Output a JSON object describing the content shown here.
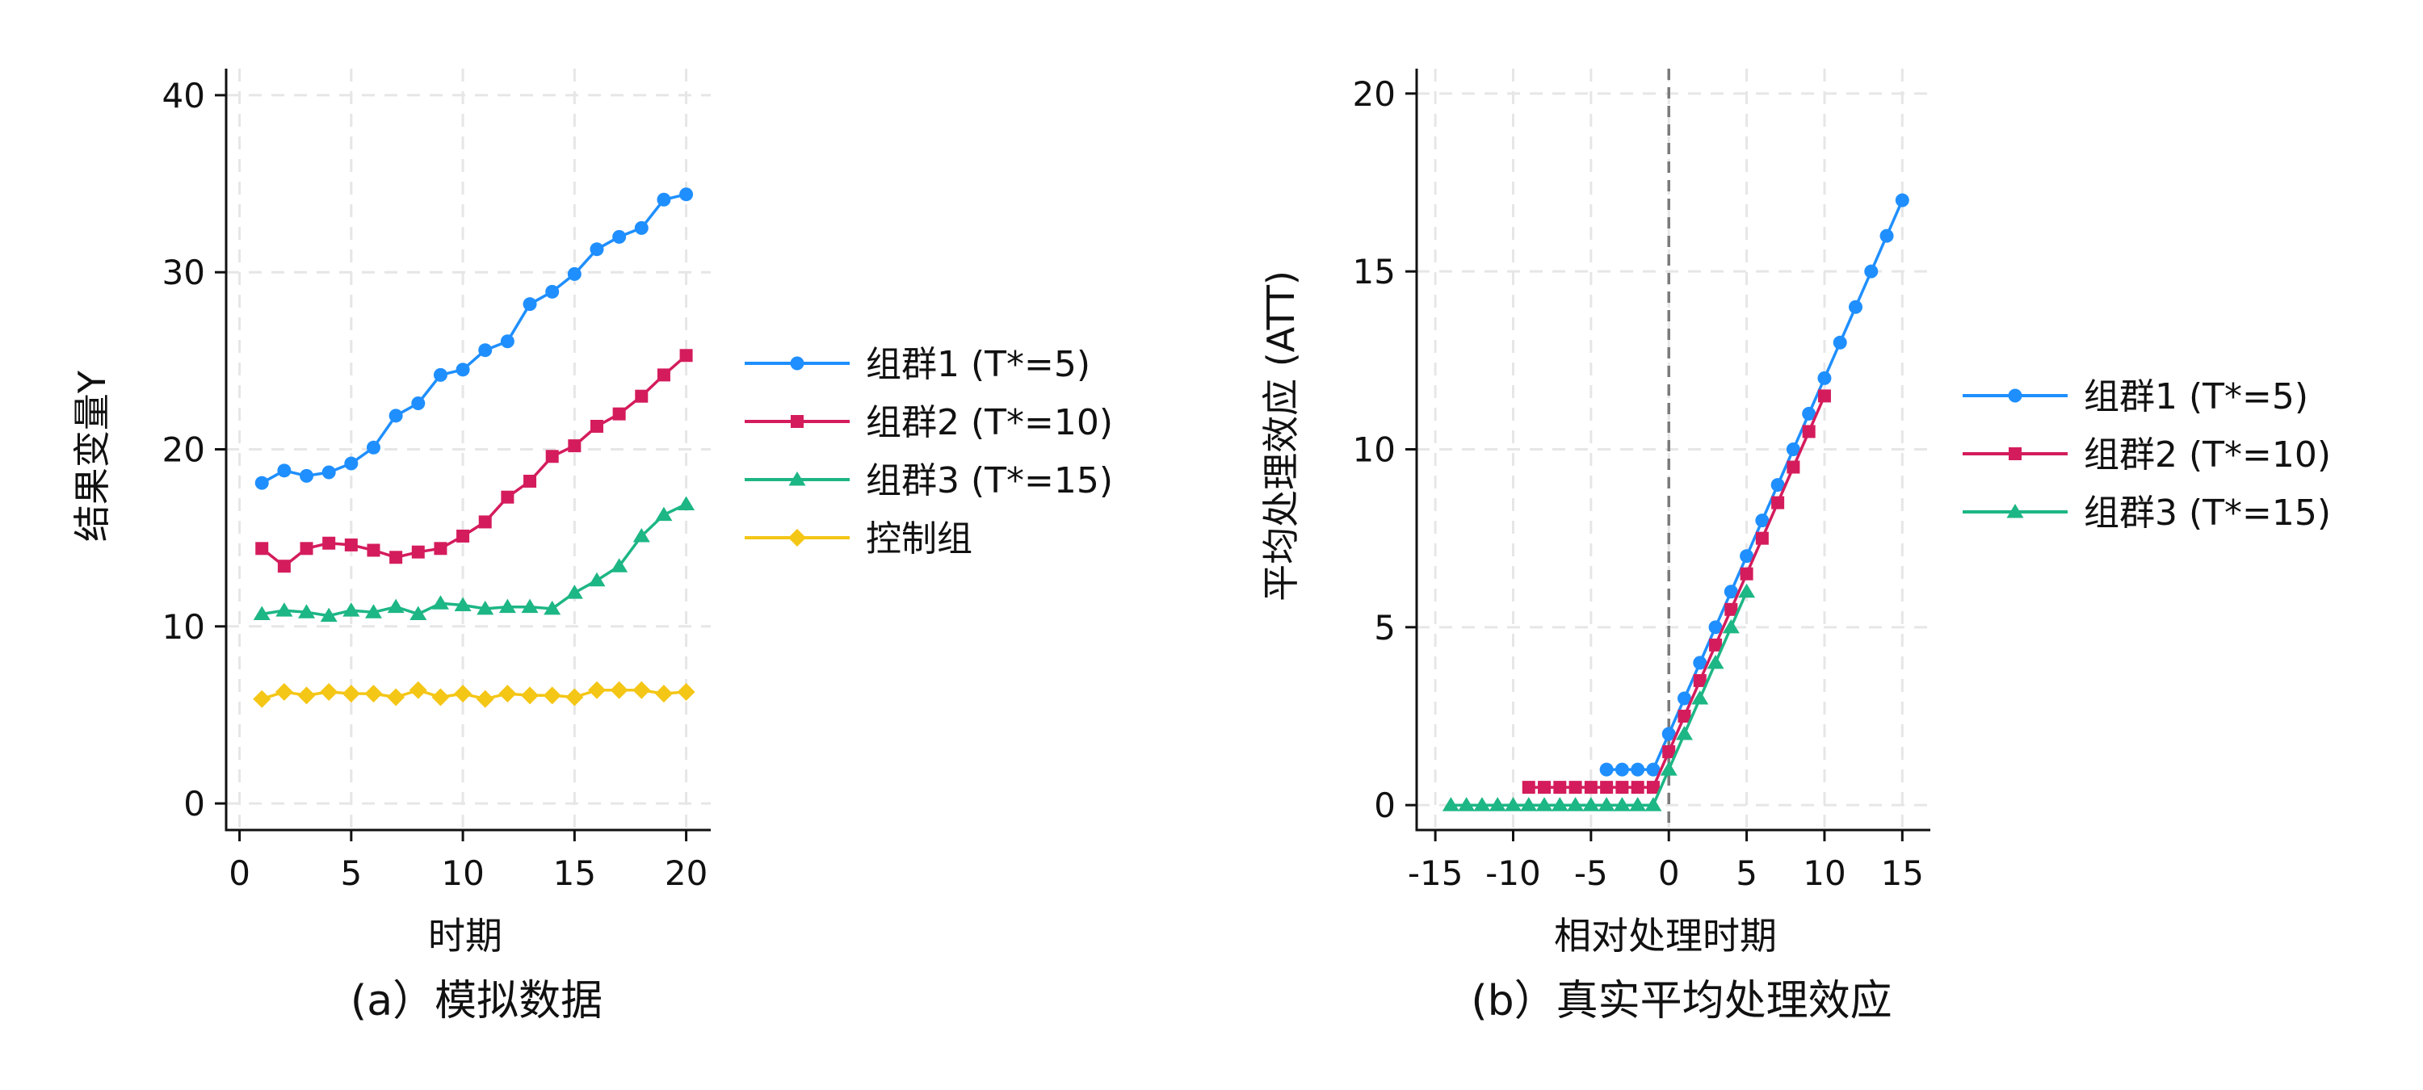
{
  "chart_data": [
    {
      "type": "line",
      "caption": "(a）模拟数据",
      "xlabel": "时期",
      "ylabel": "结果变量Y",
      "xlim": [
        -0.6,
        21.1
      ],
      "ylim": [
        -1.5,
        41.5
      ],
      "xticks": [
        0,
        5,
        10,
        15,
        20
      ],
      "yticks": [
        0,
        10,
        20,
        30,
        40
      ],
      "grid": true,
      "legend_position": "right",
      "x": [
        1,
        2,
        3,
        4,
        5,
        6,
        7,
        8,
        9,
        10,
        11,
        12,
        13,
        14,
        15,
        16,
        17,
        18,
        19,
        20
      ],
      "series": [
        {
          "name": "组群1 (T*=5)",
          "color": "#1f8fff",
          "marker": "circle",
          "values": [
            18.1,
            18.8,
            18.5,
            18.7,
            19.2,
            20.1,
            21.9,
            22.6,
            24.2,
            24.5,
            25.6,
            26.1,
            28.2,
            28.9,
            29.9,
            31.3,
            32.0,
            32.5,
            34.1,
            34.4
          ]
        },
        {
          "name": "组群2 (T*=10)",
          "color": "#d41c5c",
          "marker": "square",
          "values": [
            14.4,
            13.4,
            14.4,
            14.7,
            14.6,
            14.3,
            13.9,
            14.2,
            14.4,
            15.1,
            15.9,
            17.3,
            18.2,
            19.6,
            20.2,
            21.3,
            22.0,
            23.0,
            24.2,
            25.3
          ]
        },
        {
          "name": "组群3 (T*=15)",
          "color": "#1db685",
          "marker": "triangle",
          "values": [
            10.7,
            10.9,
            10.8,
            10.6,
            10.9,
            10.8,
            11.1,
            10.7,
            11.3,
            11.2,
            11.0,
            11.1,
            11.1,
            11.0,
            11.9,
            12.6,
            13.4,
            15.1,
            16.3,
            16.9
          ]
        },
        {
          "name": "控制组",
          "color": "#f4c616",
          "marker": "diamond",
          "values": [
            5.9,
            6.3,
            6.1,
            6.3,
            6.2,
            6.2,
            6.0,
            6.4,
            6.0,
            6.2,
            5.9,
            6.2,
            6.1,
            6.1,
            6.0,
            6.4,
            6.4,
            6.4,
            6.2,
            6.3
          ]
        }
      ]
    },
    {
      "type": "line",
      "caption": "(b）真实平均处理效应",
      "xlabel": "相对处理时期",
      "ylabel": "平均处理效应 (ATT)",
      "xlim": [
        -16.2,
        16.8
      ],
      "ylim": [
        -0.7,
        20.7
      ],
      "xticks": [
        -15,
        -10,
        -5,
        0,
        5,
        10,
        15
      ],
      "yticks": [
        0,
        5,
        10,
        15,
        20
      ],
      "reference_line_x": 0,
      "grid": true,
      "legend_position": "right",
      "series": [
        {
          "name": "组群1 (T*=5)",
          "color": "#1f8fff",
          "marker": "circle",
          "x": [
            -4,
            -3,
            -2,
            -1,
            0,
            1,
            2,
            3,
            4,
            5,
            6,
            7,
            8,
            9,
            10,
            11,
            12,
            13,
            14,
            15
          ],
          "values": [
            1,
            1,
            1,
            1,
            2,
            3,
            4,
            5,
            6,
            7,
            8,
            9,
            10,
            11,
            12,
            13,
            14,
            15,
            16,
            17
          ]
        },
        {
          "name": "组群2 (T*=10)",
          "color": "#d41c5c",
          "marker": "square",
          "x": [
            -9,
            -8,
            -7,
            -6,
            -5,
            -4,
            -3,
            -2,
            -1,
            0,
            1,
            2,
            3,
            4,
            5,
            6,
            7,
            8,
            9,
            10
          ],
          "values": [
            0.5,
            0.5,
            0.5,
            0.5,
            0.5,
            0.5,
            0.5,
            0.5,
            0.5,
            1.5,
            2.5,
            3.5,
            4.5,
            5.5,
            6.5,
            7.5,
            8.5,
            9.5,
            10.5,
            11.5
          ]
        },
        {
          "name": "组群3 (T*=15)",
          "color": "#1db685",
          "marker": "triangle",
          "x": [
            -14,
            -13,
            -12,
            -11,
            -10,
            -9,
            -8,
            -7,
            -6,
            -5,
            -4,
            -3,
            -2,
            -1,
            0,
            1,
            2,
            3,
            4,
            5
          ],
          "values": [
            0,
            0,
            0,
            0,
            0,
            0,
            0,
            0,
            0,
            0,
            0,
            0,
            0,
            0,
            1,
            2,
            3,
            4,
            5,
            6
          ]
        }
      ]
    }
  ]
}
